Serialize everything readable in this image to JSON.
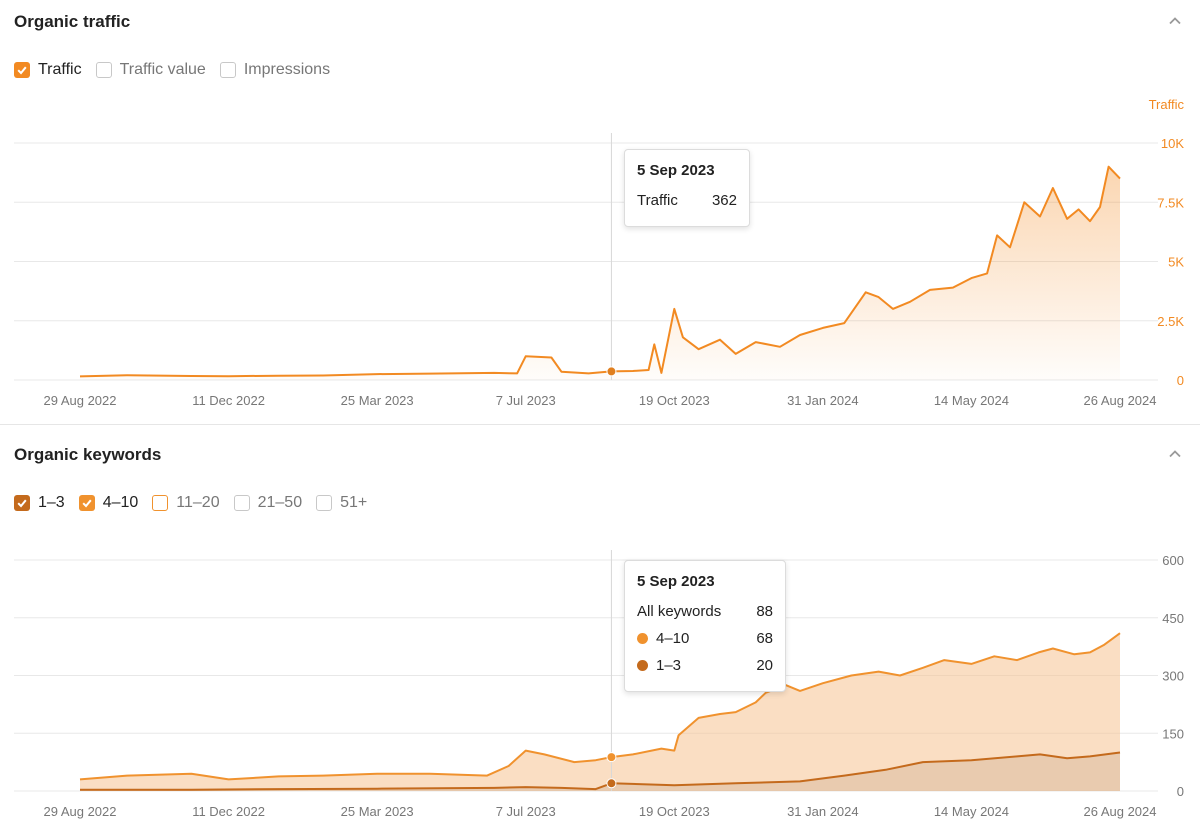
{
  "colors": {
    "traffic": "#f28a22",
    "pos4_10": "#f0922e",
    "pos1_3": "#c46a1c",
    "grid": "#e8e8e8",
    "axis_text": "#777777"
  },
  "traffic_panel": {
    "title": "Organic traffic",
    "filters": [
      {
        "label": "Traffic",
        "checked": true,
        "color": "#f28a22"
      },
      {
        "label": "Traffic value",
        "checked": false
      },
      {
        "label": "Impressions",
        "checked": false
      }
    ],
    "tooltip": {
      "date": "5 Sep 2023",
      "rows": [
        {
          "label": "Traffic",
          "value": "362"
        }
      ]
    }
  },
  "keywords_panel": {
    "title": "Organic keywords",
    "filters": [
      {
        "label": "1–3",
        "checked": true,
        "color": "#c46a1c"
      },
      {
        "label": "4–10",
        "checked": true,
        "color": "#f0922e"
      },
      {
        "label": "11–20",
        "checked": false,
        "accent": "#f0922e"
      },
      {
        "label": "21–50",
        "checked": false
      },
      {
        "label": "51+",
        "checked": false
      }
    ],
    "tooltip": {
      "date": "5 Sep 2023",
      "rows": [
        {
          "label": "All keywords",
          "value": "88"
        },
        {
          "label": "4–10",
          "value": "68",
          "color": "#f0922e"
        },
        {
          "label": "1–3",
          "value": "20",
          "color": "#c46a1c"
        }
      ]
    }
  },
  "chart_data": [
    {
      "type": "area",
      "title": "Organic traffic",
      "ylabel": "Traffic",
      "x_ticks": [
        "29 Aug 2022",
        "11 Dec 2022",
        "25 Mar 2023",
        "7 Jul 2023",
        "19 Oct 2023",
        "31 Jan 2024",
        "14 May 2024",
        "26 Aug 2024"
      ],
      "y_ticks": [
        "0",
        "2.5K",
        "5K",
        "7.5K",
        "10K"
      ],
      "ylim": [
        0,
        10000
      ],
      "grid": true,
      "series": [
        {
          "name": "Traffic",
          "x": [
            "2022-08-29",
            "2022-10-01",
            "2022-11-15",
            "2022-12-11",
            "2023-01-15",
            "2023-02-15",
            "2023-03-25",
            "2023-05-01",
            "2023-06-15",
            "2023-07-01",
            "2023-07-07",
            "2023-07-25",
            "2023-08-01",
            "2023-08-20",
            "2023-09-05",
            "2023-09-20",
            "2023-10-01",
            "2023-10-05",
            "2023-10-10",
            "2023-10-19",
            "2023-10-25",
            "2023-11-05",
            "2023-11-20",
            "2023-12-01",
            "2023-12-15",
            "2024-01-01",
            "2024-01-15",
            "2024-01-31",
            "2024-02-15",
            "2024-03-01",
            "2024-03-10",
            "2024-03-20",
            "2024-04-01",
            "2024-04-15",
            "2024-05-01",
            "2024-05-14",
            "2024-05-25",
            "2024-06-01",
            "2024-06-10",
            "2024-06-20",
            "2024-07-01",
            "2024-07-10",
            "2024-07-20",
            "2024-07-28",
            "2024-08-05",
            "2024-08-12",
            "2024-08-18",
            "2024-08-26"
          ],
          "values": [
            150,
            200,
            170,
            160,
            180,
            190,
            250,
            270,
            300,
            280,
            1000,
            950,
            350,
            280,
            362,
            380,
            420,
            1500,
            300,
            3000,
            1800,
            1300,
            1700,
            1100,
            1600,
            1400,
            1900,
            2200,
            2400,
            3700,
            3500,
            3000,
            3300,
            3800,
            3900,
            4300,
            4500,
            6100,
            5600,
            7500,
            6900,
            8100,
            6800,
            7200,
            6700,
            7300,
            9000,
            8500
          ]
        }
      ]
    },
    {
      "type": "area",
      "title": "Organic keywords",
      "x_ticks": [
        "29 Aug 2022",
        "11 Dec 2022",
        "25 Mar 2023",
        "7 Jul 2023",
        "19 Oct 2023",
        "31 Jan 2024",
        "14 May 2024",
        "26 Aug 2024"
      ],
      "y_ticks": [
        "0",
        "150",
        "300",
        "450",
        "600"
      ],
      "ylim": [
        0,
        600
      ],
      "grid": true,
      "series": [
        {
          "name": "All keywords",
          "x": [
            "2022-08-29",
            "2022-10-01",
            "2022-11-15",
            "2022-12-11",
            "2023-01-15",
            "2023-02-15",
            "2023-03-25",
            "2023-05-01",
            "2023-06-10",
            "2023-06-25",
            "2023-07-07",
            "2023-07-20",
            "2023-08-10",
            "2023-08-25",
            "2023-09-05",
            "2023-09-20",
            "2023-10-10",
            "2023-10-19",
            "2023-10-22",
            "2023-11-05",
            "2023-11-20",
            "2023-12-01",
            "2023-12-15",
            "2023-12-22",
            "2024-01-05",
            "2024-01-15",
            "2024-01-31",
            "2024-02-20",
            "2024-03-10",
            "2024-03-25",
            "2024-04-10",
            "2024-04-25",
            "2024-05-14",
            "2024-05-30",
            "2024-06-15",
            "2024-06-30",
            "2024-07-10",
            "2024-07-25",
            "2024-08-05",
            "2024-08-15",
            "2024-08-26"
          ],
          "values": [
            30,
            40,
            45,
            30,
            38,
            40,
            45,
            45,
            40,
            65,
            105,
            95,
            75,
            80,
            88,
            95,
            110,
            105,
            145,
            190,
            200,
            205,
            230,
            255,
            275,
            260,
            280,
            300,
            310,
            300,
            320,
            340,
            330,
            350,
            340,
            360,
            370,
            355,
            360,
            380,
            410
          ]
        },
        {
          "name": "1–3",
          "x": [
            "2022-08-29",
            "2022-11-15",
            "2023-01-15",
            "2023-03-25",
            "2023-06-15",
            "2023-07-07",
            "2023-08-01",
            "2023-08-25",
            "2023-09-05",
            "2023-10-19",
            "2023-12-01",
            "2024-01-15",
            "2024-02-15",
            "2024-03-15",
            "2024-04-10",
            "2024-05-14",
            "2024-06-15",
            "2024-07-01",
            "2024-07-20",
            "2024-08-05",
            "2024-08-26"
          ],
          "values": [
            3,
            3,
            5,
            6,
            8,
            10,
            8,
            5,
            20,
            15,
            20,
            25,
            40,
            55,
            75,
            80,
            90,
            95,
            85,
            90,
            100
          ]
        }
      ]
    }
  ]
}
